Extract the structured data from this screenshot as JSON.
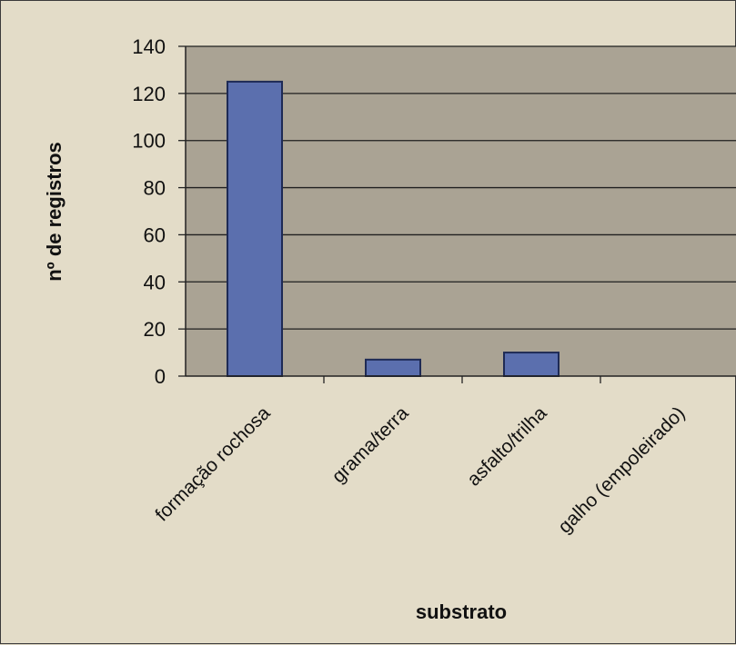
{
  "chart_data": {
    "type": "bar",
    "title": "",
    "xlabel": "substrato",
    "ylabel": "nº de registros",
    "categories": [
      "formação rochosa",
      "grama/terra",
      "asfalto/trilha",
      "galho (empoleirado)"
    ],
    "values": [
      125,
      7,
      10,
      0
    ],
    "ylim": [
      0,
      140
    ],
    "yticks": [
      0,
      20,
      40,
      60,
      80,
      100,
      120,
      140
    ],
    "grid": true,
    "legend": "none",
    "colors": {
      "bar": "#5b6fae",
      "bar_stroke": "#1e2a55",
      "plot_background": "#aaa394",
      "gridline": "#1f1f1f"
    }
  }
}
